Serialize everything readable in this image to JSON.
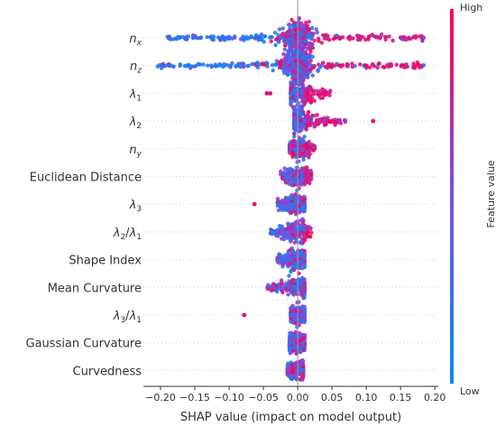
{
  "chart_data": {
    "type": "scatter",
    "subtype": "shap-beeswarm",
    "xlabel": "SHAP value (impact on model output)",
    "xlim": [
      -0.225,
      0.205
    ],
    "xticks": [
      -0.2,
      -0.15,
      -0.1,
      -0.05,
      0.0,
      0.05,
      0.1,
      0.15,
      0.2
    ],
    "xtick_labels": [
      "−0.20",
      "−0.15",
      "−0.10",
      "−0.05",
      "0.00",
      "0.05",
      "0.10",
      "0.15",
      "0.20"
    ],
    "features": [
      {
        "label": "n_x",
        "spread_low": -0.19,
        "spread_high": 0.185,
        "width": 0.45,
        "outliers": []
      },
      {
        "label": "n_z",
        "spread_low": -0.205,
        "spread_high": 0.185,
        "width": 0.42,
        "outliers": []
      },
      {
        "label": "λ1",
        "spread_low": -0.01,
        "spread_high": 0.048,
        "width": 0.3,
        "outliers": [
          -0.045,
          -0.04
        ]
      },
      {
        "label": "λ2",
        "spread_low": -0.005,
        "spread_high": 0.07,
        "width": 0.28,
        "outliers": [
          0.11
        ]
      },
      {
        "label": "n_y",
        "spread_low": -0.012,
        "spread_high": 0.025,
        "width": 0.22,
        "outliers": []
      },
      {
        "label": "Euclidean Distance",
        "spread_low": -0.025,
        "spread_high": 0.02,
        "width": 0.22,
        "outliers": []
      },
      {
        "label": "λ3",
        "spread_low": -0.03,
        "spread_high": 0.01,
        "width": 0.2,
        "outliers": [
          -0.063
        ]
      },
      {
        "label": "λ2/λ1",
        "spread_low": -0.04,
        "spread_high": 0.02,
        "width": 0.24,
        "outliers": []
      },
      {
        "label": "Shape Index",
        "spread_low": -0.03,
        "spread_high": 0.01,
        "width": 0.22,
        "outliers": []
      },
      {
        "label": "Mean Curvature",
        "spread_low": -0.045,
        "spread_high": 0.01,
        "width": 0.22,
        "outliers": []
      },
      {
        "label": "λ3/λ1",
        "spread_low": -0.01,
        "spread_high": 0.01,
        "width": 0.18,
        "outliers": [
          -0.078
        ]
      },
      {
        "label": "Gaussian Curvature",
        "spread_low": -0.012,
        "spread_high": 0.01,
        "width": 0.22,
        "outliers": []
      },
      {
        "label": "Curvedness",
        "spread_low": -0.015,
        "spread_high": 0.008,
        "width": 0.18,
        "outliers": []
      }
    ],
    "colorbar": {
      "title": "Feature value",
      "high_label": "High",
      "low_label": "Low"
    },
    "colors": {
      "high": "#ff0052",
      "low": "#008bfb"
    },
    "grid": false,
    "legend": "right (colorbar)"
  }
}
